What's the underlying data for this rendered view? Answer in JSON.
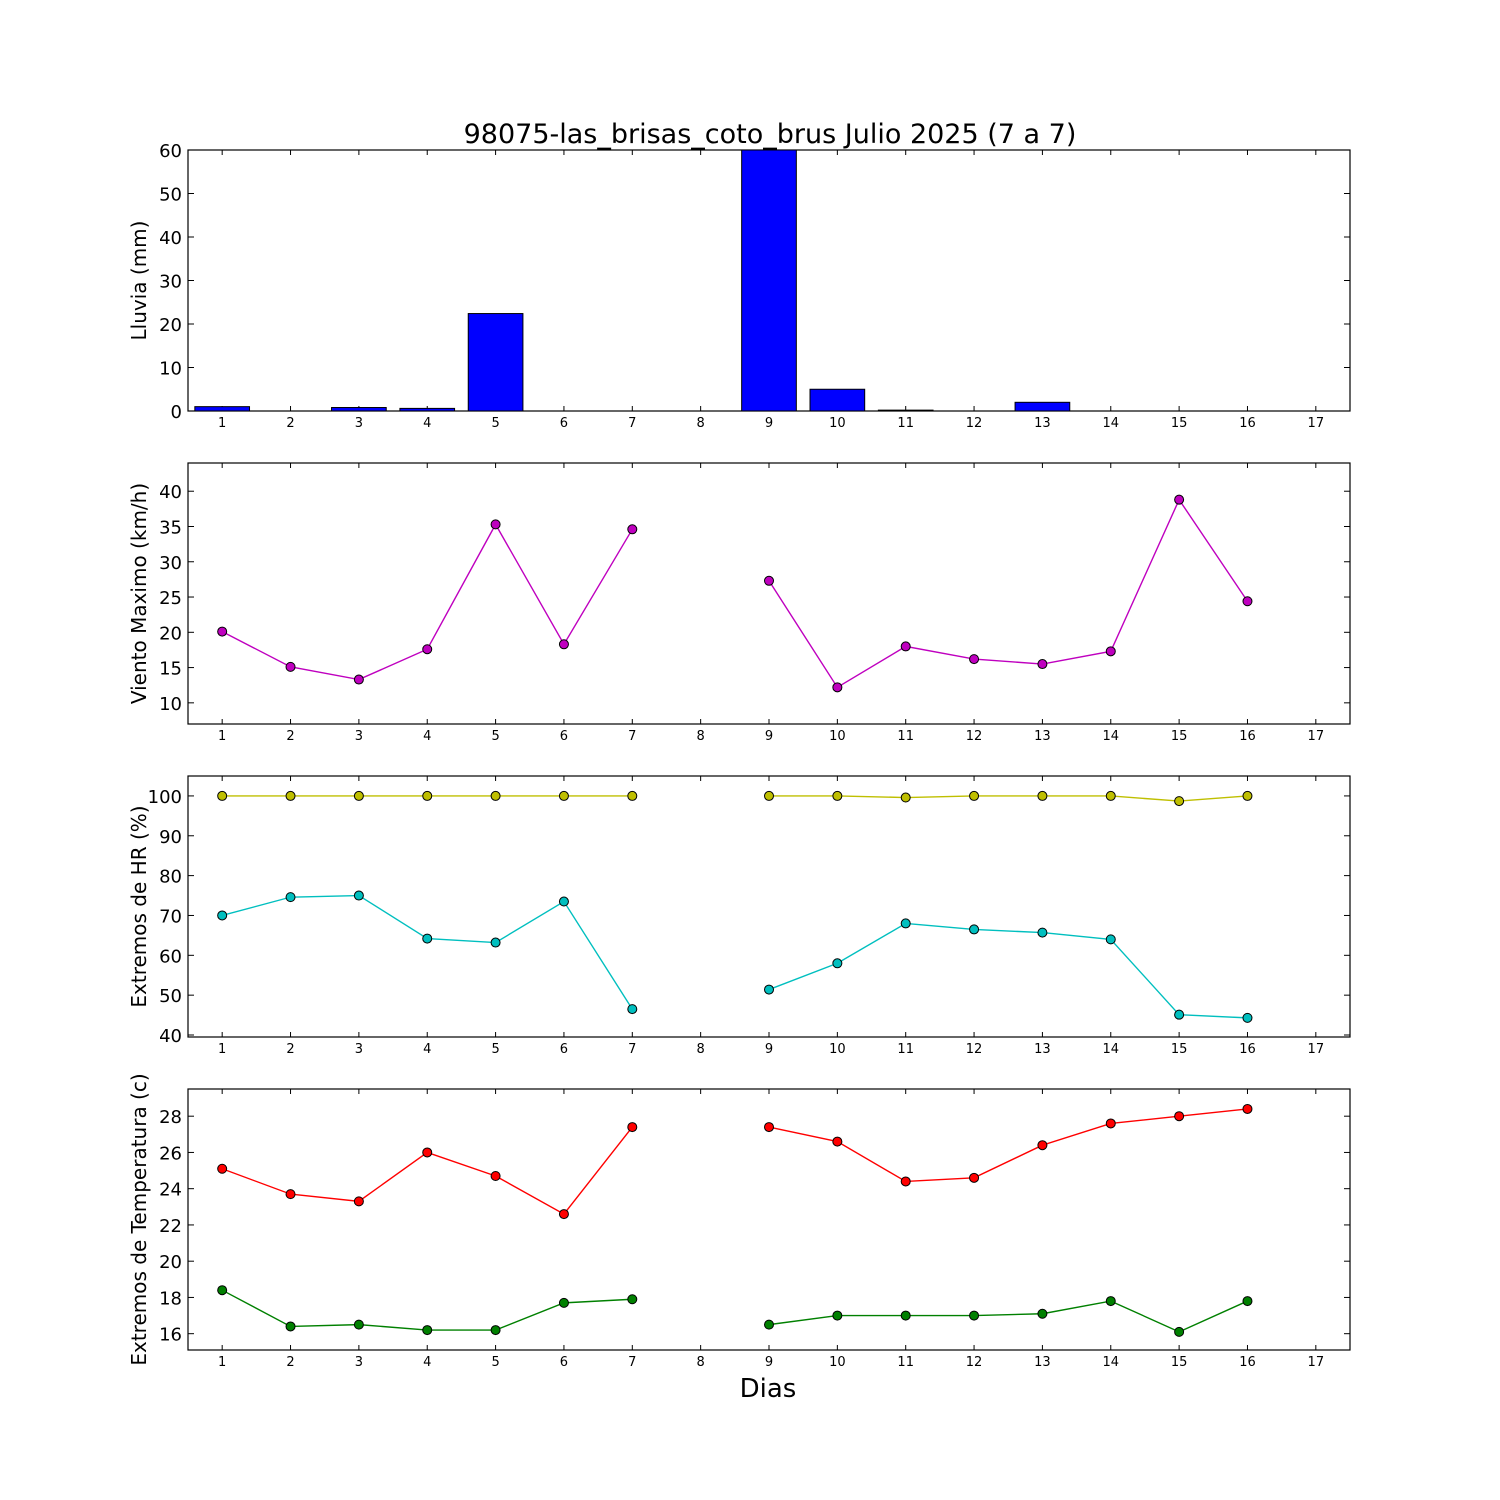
{
  "chart_data": {
    "title": "98075-las_brisas_coto_brus Julio 2025  (7 a 7)",
    "xlabel": "Dias",
    "x_ticks": [
      1,
      2,
      3,
      4,
      5,
      6,
      7,
      8,
      9,
      10,
      11,
      12,
      13,
      14,
      15,
      16,
      17
    ],
    "xlim": [
      0.5,
      17.5
    ],
    "grid": false,
    "panels": [
      {
        "type": "bar",
        "ylabel": "Lluvia (mm)",
        "ylim": [
          0,
          60
        ],
        "yticks": [
          0,
          10,
          20,
          30,
          40,
          50,
          60
        ],
        "series": [
          {
            "color": "#0000ff",
            "x": [
              1,
              2,
              3,
              4,
              5,
              6,
              7,
              8,
              9,
              10,
              11,
              12,
              13,
              14,
              15,
              16
            ],
            "values": [
              1.0,
              0,
              0.8,
              0.6,
              22.4,
              0,
              0,
              null,
              60.0,
              5.0,
              0.2,
              0,
              2.0,
              0,
              0,
              0
            ]
          }
        ]
      },
      {
        "type": "line",
        "ylabel": "Viento Maximo (km/h)",
        "ylim": [
          7,
          44
        ],
        "yticks": [
          10,
          15,
          20,
          25,
          30,
          35,
          40
        ],
        "series": [
          {
            "color": "#bf00bf",
            "x": [
              1,
              2,
              3,
              4,
              5,
              6,
              7,
              8,
              9,
              10,
              11,
              12,
              13,
              14,
              15,
              16
            ],
            "values": [
              20.1,
              15.1,
              13.3,
              17.6,
              35.3,
              18.3,
              34.6,
              null,
              27.3,
              12.2,
              18.0,
              16.2,
              15.5,
              17.3,
              38.8,
              24.4
            ]
          }
        ]
      },
      {
        "type": "line",
        "ylabel": "Extremos de HR (%)",
        "ylim": [
          39.5,
          105
        ],
        "yticks": [
          40,
          50,
          60,
          70,
          80,
          90,
          100
        ],
        "series": [
          {
            "color": "#bfbf00",
            "x": [
              1,
              2,
              3,
              4,
              5,
              6,
              7,
              8,
              9,
              10,
              11,
              12,
              13,
              14,
              15,
              16
            ],
            "values": [
              100,
              100,
              100,
              100,
              100,
              100,
              100,
              null,
              100,
              100,
              99.6,
              100,
              100,
              100,
              98.7,
              100
            ]
          },
          {
            "color": "#00bfbf",
            "x": [
              1,
              2,
              3,
              4,
              5,
              6,
              7,
              8,
              9,
              10,
              11,
              12,
              13,
              14,
              15,
              16
            ],
            "values": [
              70.0,
              74.6,
              75.0,
              64.2,
              63.2,
              73.5,
              46.5,
              null,
              51.4,
              58.0,
              68.0,
              66.5,
              65.7,
              64.0,
              45.1,
              44.3
            ]
          }
        ]
      },
      {
        "type": "line",
        "ylabel": "Extremos de Temperatura (c)",
        "ylim": [
          15.1,
          29.5
        ],
        "yticks": [
          16,
          18,
          20,
          22,
          24,
          26,
          28
        ],
        "series": [
          {
            "color": "#ff0000",
            "x": [
              1,
              2,
              3,
              4,
              5,
              6,
              7,
              8,
              9,
              10,
              11,
              12,
              13,
              14,
              15,
              16
            ],
            "values": [
              25.1,
              23.7,
              23.3,
              26.0,
              24.7,
              22.6,
              27.4,
              null,
              27.4,
              26.6,
              24.4,
              24.6,
              26.4,
              27.6,
              28.0,
              28.4
            ]
          },
          {
            "color": "#008000",
            "x": [
              1,
              2,
              3,
              4,
              5,
              6,
              7,
              8,
              9,
              10,
              11,
              12,
              13,
              14,
              15,
              16
            ],
            "values": [
              18.4,
              16.4,
              16.5,
              16.2,
              16.2,
              17.7,
              17.9,
              null,
              16.5,
              17.0,
              17.0,
              17.0,
              17.1,
              17.8,
              16.1,
              17.8
            ]
          }
        ]
      }
    ]
  }
}
